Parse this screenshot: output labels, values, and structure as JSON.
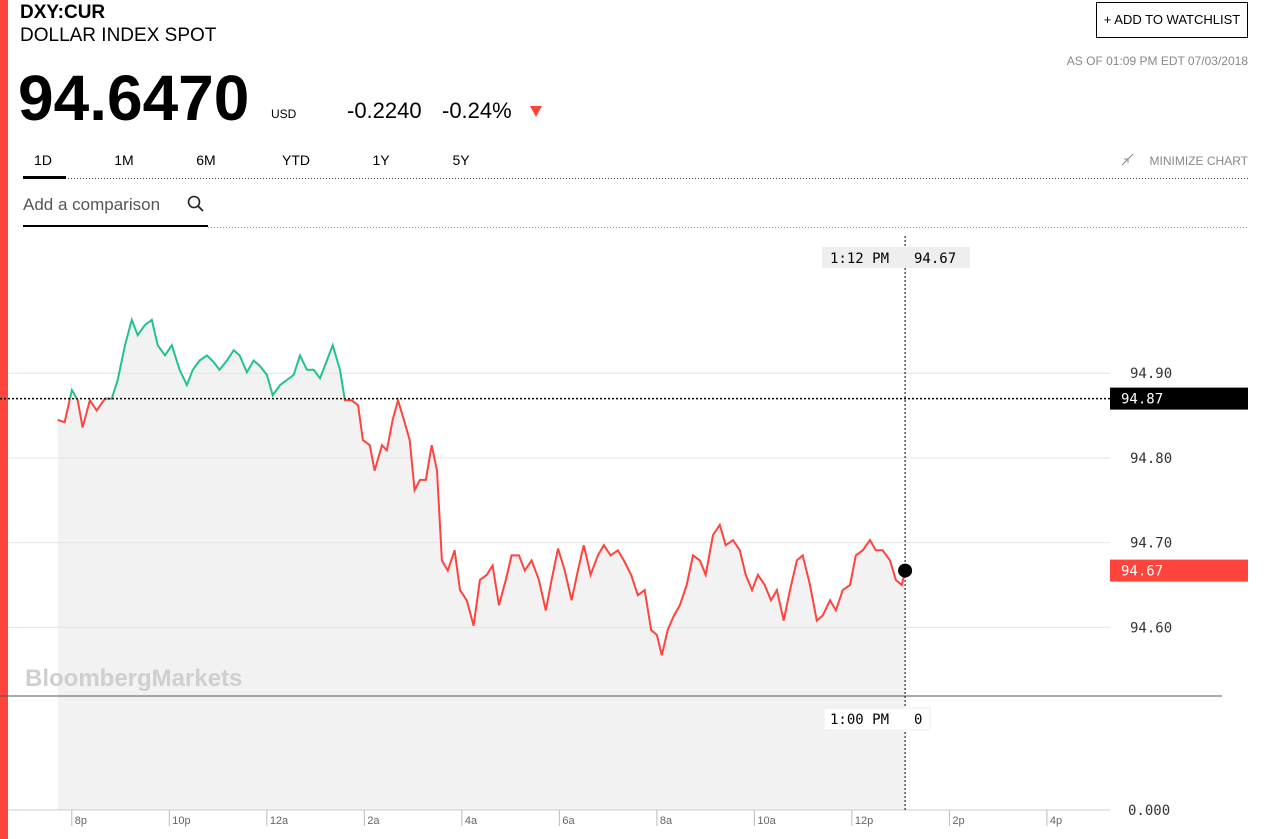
{
  "header": {
    "ticker": "DXY:CUR",
    "name": "DOLLAR INDEX SPOT",
    "price": "94.6470",
    "currency": "USD",
    "change": "-0.2240",
    "change_pct": "-0.24%",
    "as_of": "AS OF 01:09 PM EDT 07/03/2018",
    "watchlist_button": "+ ADD TO WATCHLIST"
  },
  "tabs": [
    "1D",
    "1M",
    "6M",
    "YTD",
    "1Y",
    "5Y"
  ],
  "minimize": "MINIMIZE CHART",
  "comparison_placeholder": "Add a comparison",
  "watermark": "BloombergMarkets",
  "crosshair": {
    "top_time": "1:12 PM",
    "top_value": "94.67",
    "bottom_time": "1:00 PM",
    "bottom_value": "0"
  },
  "volume_label": "0.000",
  "chart_data": {
    "type": "line",
    "x": [
      -0.35,
      -0.21,
      -0.06,
      0.06,
      0.16,
      0.31,
      0.45,
      0.62,
      0.76,
      0.88,
      1.03,
      1.17,
      1.29,
      1.44,
      1.58,
      1.7,
      1.85,
      1.99,
      2.15,
      2.3,
      2.42,
      2.56,
      2.71,
      2.85,
      2.97,
      3.12,
      3.26,
      3.38,
      3.53,
      3.67,
      3.79,
      3.94,
      4.06,
      4.21,
      4.35,
      4.49,
      4.62,
      4.76,
      4.9,
      5.03,
      5.17,
      5.29,
      5.44,
      5.54,
      5.68,
      5.81,
      5.91,
      6.05,
      6.15,
      6.3,
      6.4,
      6.52,
      6.63,
      6.75,
      6.87,
      6.97,
      7.08,
      7.2,
      7.32,
      7.43,
      7.53,
      7.65,
      7.79,
      7.9,
      8.04,
      8.18,
      8.31,
      8.45,
      8.57,
      8.7,
      8.84,
      8.96,
      9.11,
      9.23,
      9.37,
      9.52,
      9.66,
      9.78,
      9.91,
      10.05,
      10.19,
      10.32,
      10.44,
      10.58,
      10.73,
      10.85,
      10.99,
      11.14,
      11.26,
      11.41,
      11.55,
      11.69,
      11.82,
      11.94,
      12.04,
      12.16,
      12.29,
      12.41,
      12.55,
      12.68,
      12.82,
      12.94,
      13.09,
      13.23,
      13.35,
      13.5,
      13.64,
      13.76,
      13.89,
      14.01,
      14.15,
      14.28,
      14.4,
      14.54,
      14.67,
      14.81,
      14.93,
      15.08,
      15.22,
      15.34,
      15.49,
      15.61,
      15.75,
      15.9,
      16.02,
      16.16,
      16.31,
      16.43,
      16.57,
      16.72,
      16.84,
      16.96,
      17.03
    ],
    "series": [
      {
        "name": "DXY:CUR",
        "color": "#21c38c",
        "below_color": "#ff433d",
        "values": [
          94.845,
          94.842,
          94.88,
          94.868,
          94.836,
          94.868,
          94.856,
          94.87,
          94.87,
          94.892,
          94.933,
          94.963,
          94.945,
          94.957,
          94.963,
          94.933,
          94.921,
          94.933,
          94.904,
          94.886,
          94.904,
          94.915,
          94.921,
          94.913,
          94.904,
          94.915,
          94.927,
          94.921,
          94.901,
          94.915,
          94.909,
          94.898,
          94.874,
          94.886,
          94.892,
          94.898,
          94.921,
          94.904,
          94.904,
          94.894,
          94.915,
          94.933,
          94.904,
          94.868,
          94.868,
          94.862,
          94.821,
          94.815,
          94.785,
          94.815,
          94.809,
          94.845,
          94.868,
          94.845,
          94.821,
          94.762,
          94.774,
          94.774,
          94.815,
          94.785,
          94.679,
          94.667,
          94.691,
          94.644,
          94.632,
          94.602,
          94.656,
          94.662,
          94.673,
          94.626,
          94.656,
          94.685,
          94.685,
          94.667,
          94.679,
          94.656,
          94.62,
          94.656,
          94.693,
          94.667,
          94.632,
          94.667,
          94.697,
          94.662,
          94.685,
          94.697,
          94.685,
          94.691,
          94.679,
          94.662,
          94.638,
          94.644,
          94.597,
          94.591,
          94.567,
          94.597,
          94.614,
          94.626,
          94.65,
          94.685,
          94.679,
          94.662,
          94.709,
          94.721,
          94.697,
          94.703,
          94.691,
          94.662,
          94.644,
          94.662,
          94.65,
          94.632,
          94.644,
          94.608,
          94.644,
          94.679,
          94.685,
          94.65,
          94.608,
          94.614,
          94.632,
          94.62,
          94.644,
          94.65,
          94.685,
          94.691,
          94.703,
          94.691,
          94.691,
          94.679,
          94.656,
          94.65,
          94.667
        ]
      }
    ],
    "prev_close": {
      "value": 94.87,
      "label": "94.87"
    },
    "last": {
      "value": 94.667,
      "label": "94.67"
    },
    "xlim": [
      -1.37,
      23.53
    ],
    "ylim": [
      94.519,
      95.069
    ],
    "xticks": [
      {
        "value": 0,
        "label": "8p"
      },
      {
        "value": 2,
        "label": "10p"
      },
      {
        "value": 4,
        "label": "12a"
      },
      {
        "value": 6,
        "label": "2a"
      },
      {
        "value": 8,
        "label": "4a"
      },
      {
        "value": 10,
        "label": "6a"
      },
      {
        "value": 12,
        "label": "8a"
      },
      {
        "value": 14,
        "label": "10a"
      },
      {
        "value": 16,
        "label": "12p"
      },
      {
        "value": 18,
        "label": "2p"
      },
      {
        "value": 20,
        "label": "4p"
      }
    ],
    "yticks": [
      {
        "value": 94.9,
        "label": "94.90"
      },
      {
        "value": 94.8,
        "label": "94.80"
      },
      {
        "value": 94.7,
        "label": "94.70"
      },
      {
        "value": 94.6,
        "label": "94.60"
      }
    ],
    "grid": true
  }
}
